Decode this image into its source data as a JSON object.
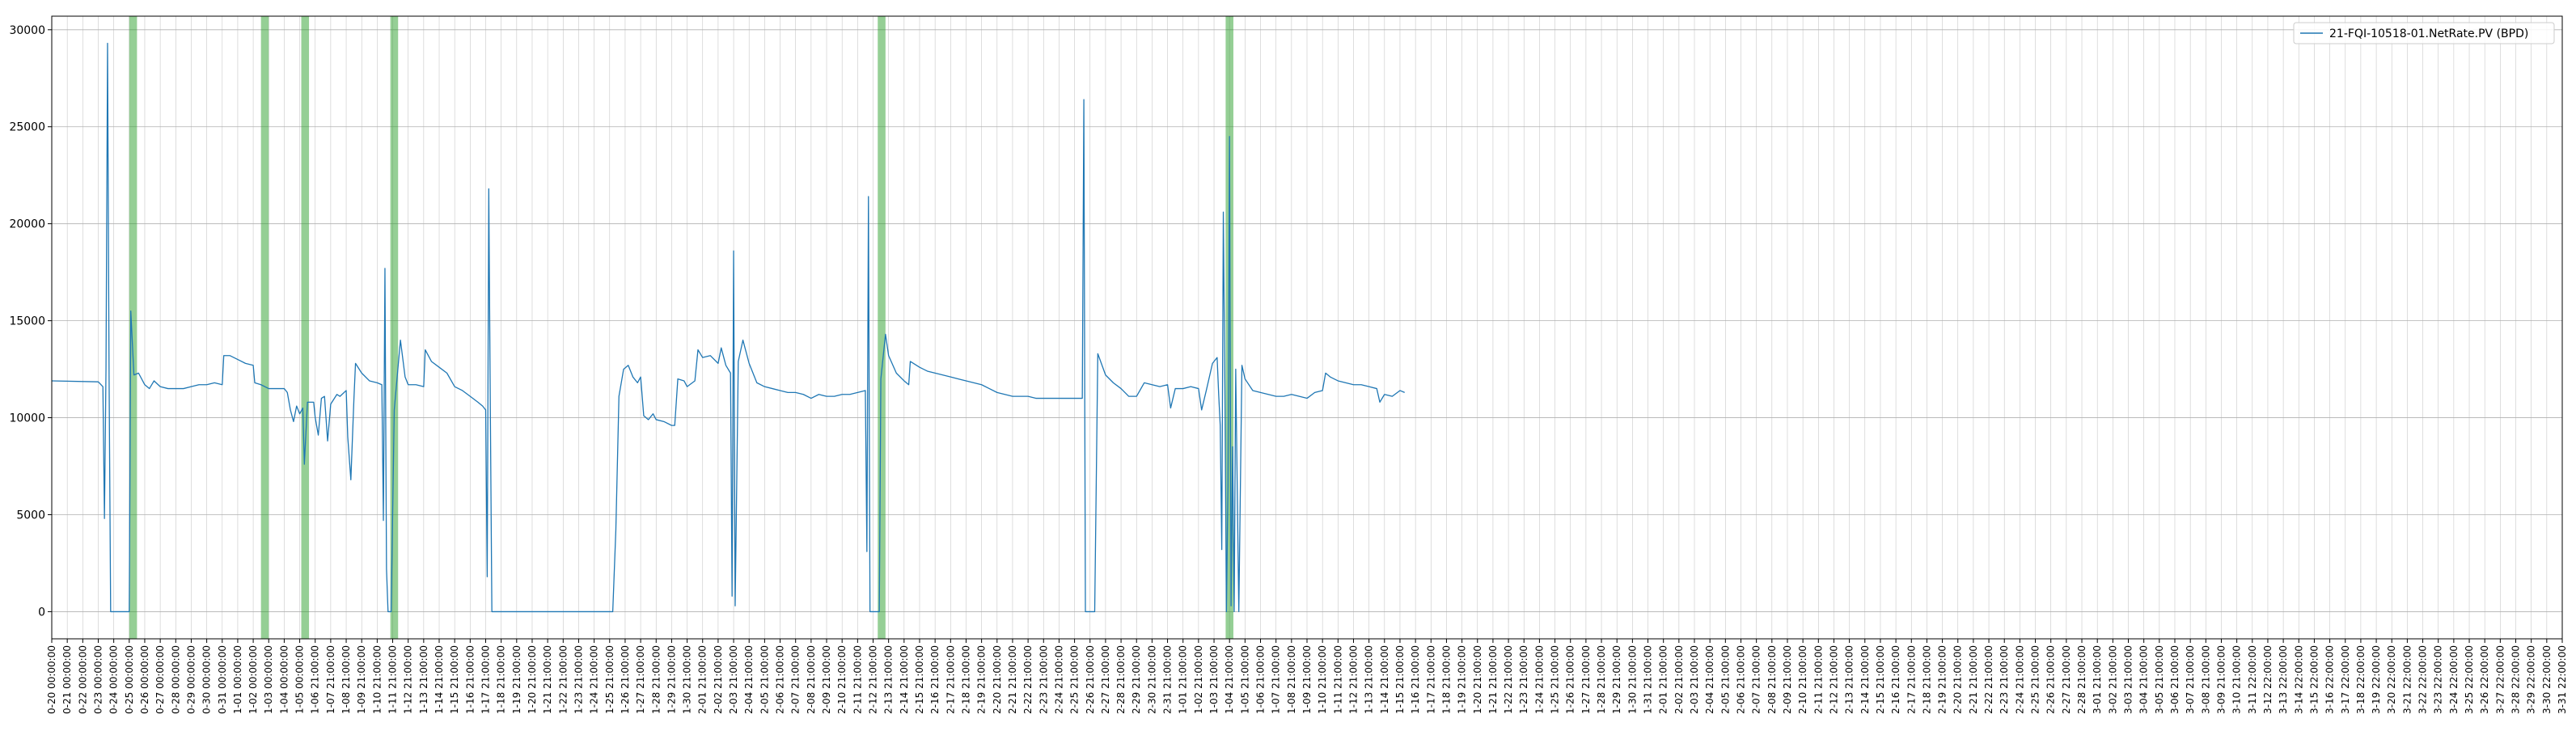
{
  "chart_data": {
    "type": "line",
    "title": "",
    "xlabel": "",
    "ylabel": "",
    "ylim": [
      -1400,
      30700
    ],
    "yticks": [
      0,
      5000,
      10000,
      15000,
      20000,
      25000,
      30000
    ],
    "grid": true,
    "legend_position": "top-right",
    "colors": {
      "series": "#1f77b4",
      "band": "#2ca02c",
      "grid": "#b0b0b0"
    },
    "x_tick_labels": [
      "0-20 00:00:00",
      "0-21 00:00:00",
      "0-22 00:00:00",
      "0-23 00:00:00",
      "0-24 00:00:00",
      "0-25 00:00:00",
      "0-26 00:00:00",
      "0-27 00:00:00",
      "0-28 00:00:00",
      "0-29 00:00:00",
      "0-30 00:00:00",
      "0-31 00:00:00",
      "1-01 00:00:00",
      "1-02 00:00:00",
      "1-03 00:00:00",
      "1-04 00:00:00",
      "1-05 00:00:00",
      "1-06 21:00:00",
      "1-07 21:00:00",
      "1-08 21:00:00",
      "1-09 21:00:00",
      "1-10 21:00:00",
      "1-11 21:00:00",
      "1-12 21:00:00",
      "1-13 21:00:00",
      "1-14 21:00:00",
      "1-15 21:00:00",
      "1-16 21:00:00",
      "1-17 21:00:00",
      "1-18 21:00:00",
      "1-19 21:00:00",
      "1-20 21:00:00",
      "1-21 21:00:00",
      "1-22 21:00:00",
      "1-23 21:00:00",
      "1-24 21:00:00",
      "1-25 21:00:00",
      "1-26 21:00:00",
      "1-27 21:00:00",
      "1-28 21:00:00",
      "1-29 21:00:00",
      "1-30 21:00:00",
      "2-01 21:00:00",
      "2-02 21:00:00",
      "2-03 21:00:00",
      "2-04 21:00:00",
      "2-05 21:00:00",
      "2-06 21:00:00",
      "2-07 21:00:00",
      "2-08 21:00:00",
      "2-09 21:00:00",
      "2-10 21:00:00",
      "2-11 21:00:00",
      "2-12 21:00:00",
      "2-13 21:00:00",
      "2-14 21:00:00",
      "2-15 21:00:00",
      "2-16 21:00:00",
      "2-17 21:00:00",
      "2-18 21:00:00",
      "2-19 21:00:00",
      "2-20 21:00:00",
      "2-21 21:00:00",
      "2-22 21:00:00",
      "2-23 21:00:00",
      "2-24 21:00:00",
      "2-25 21:00:00",
      "2-26 21:00:00",
      "2-27 21:00:00",
      "2-28 21:00:00",
      "2-29 21:00:00",
      "2-30 21:00:00",
      "2-31 21:00:00",
      "1-01 21:00:00",
      "1-02 21:00:00",
      "1-03 21:00:00",
      "1-04 21:00:00",
      "1-05 21:00:00",
      "1-06 21:00:00",
      "1-07 21:00:00",
      "1-08 21:00:00",
      "1-09 21:00:00",
      "1-10 21:00:00",
      "1-11 21:00:00",
      "1-12 21:00:00",
      "1-13 21:00:00",
      "1-14 21:00:00",
      "1-15 21:00:00",
      "1-16 21:00:00",
      "1-17 21:00:00",
      "1-18 21:00:00",
      "1-19 21:00:00",
      "1-20 21:00:00",
      "1-21 21:00:00",
      "1-22 21:00:00",
      "1-23 21:00:00",
      "1-24 21:00:00",
      "1-25 21:00:00",
      "1-26 21:00:00",
      "1-27 21:00:00",
      "1-28 21:00:00",
      "1-29 21:00:00",
      "1-30 21:00:00",
      "1-31 21:00:00",
      "2-01 21:00:00",
      "2-02 21:00:00",
      "2-03 21:00:00",
      "2-04 21:00:00",
      "2-05 21:00:00",
      "2-06 21:00:00",
      "2-07 21:00:00",
      "2-08 21:00:00",
      "2-09 21:00:00",
      "2-10 21:00:00",
      "2-11 21:00:00",
      "2-12 21:00:00",
      "2-13 21:00:00",
      "2-14 21:00:00",
      "2-15 21:00:00",
      "2-16 21:00:00",
      "2-17 21:00:00",
      "2-18 21:00:00",
      "2-19 21:00:00",
      "2-20 21:00:00",
      "2-21 21:00:00",
      "2-22 21:00:00",
      "2-23 21:00:00",
      "2-24 21:00:00",
      "2-25 21:00:00",
      "2-26 21:00:00",
      "2-27 21:00:00",
      "2-28 21:00:00",
      "3-01 21:00:00",
      "3-02 21:00:00",
      "3-03 21:00:00",
      "3-04 21:00:00",
      "3-05 21:00:00",
      "3-06 21:00:00",
      "3-07 21:00:00",
      "3-08 21:00:00",
      "3-09 21:00:00",
      "3-10 21:00:00",
      "3-11 22:00:00",
      "3-12 22:00:00",
      "3-13 22:00:00",
      "3-14 22:00:00",
      "3-15 22:00:00",
      "3-16 22:00:00",
      "3-17 22:00:00",
      "3-18 22:00:00",
      "3-19 22:00:00",
      "3-20 22:00:00",
      "3-21 22:00:00",
      "3-22 22:00:00",
      "3-23 22:00:00",
      "3-24 22:00:00",
      "3-25 22:00:00",
      "3-26 22:00:00",
      "3-27 22:00:00",
      "3-28 22:00:00",
      "3-29 22:00:00",
      "3-30 22:00:00",
      "3-31 22:00:00"
    ],
    "series": [
      {
        "name": "21-FQI-10518-01.NetRate.PV (BPD)",
        "points": [
          [
            0,
            11900
          ],
          [
            3.0,
            11850
          ],
          [
            3.3,
            11600
          ],
          [
            3.4,
            4800
          ],
          [
            3.5,
            12500
          ],
          [
            3.6,
            29300
          ],
          [
            3.7,
            12000
          ],
          [
            3.8,
            0
          ],
          [
            5.0,
            0
          ],
          [
            5.1,
            15500
          ],
          [
            5.3,
            12200
          ],
          [
            5.6,
            12300
          ],
          [
            6.0,
            11700
          ],
          [
            6.3,
            11500
          ],
          [
            6.6,
            11900
          ],
          [
            7.0,
            11600
          ],
          [
            7.5,
            11500
          ],
          [
            8.0,
            11500
          ],
          [
            8.5,
            11500
          ],
          [
            9.0,
            11600
          ],
          [
            9.5,
            11700
          ],
          [
            10.0,
            11700
          ],
          [
            10.5,
            11800
          ],
          [
            11.0,
            11700
          ],
          [
            11.1,
            13200
          ],
          [
            11.5,
            13200
          ],
          [
            12.0,
            13000
          ],
          [
            12.5,
            12800
          ],
          [
            13.0,
            12700
          ],
          [
            13.1,
            11800
          ],
          [
            13.5,
            11700
          ],
          [
            14.0,
            11500
          ],
          [
            14.5,
            11500
          ],
          [
            15.0,
            11500
          ],
          [
            15.2,
            11300
          ],
          [
            15.4,
            10400
          ],
          [
            15.6,
            9800
          ],
          [
            15.8,
            10600
          ],
          [
            16.0,
            10200
          ],
          [
            16.2,
            10500
          ],
          [
            16.3,
            7600
          ],
          [
            16.5,
            10800
          ],
          [
            16.9,
            10800
          ],
          [
            17.0,
            10000
          ],
          [
            17.2,
            9100
          ],
          [
            17.4,
            11000
          ],
          [
            17.6,
            11100
          ],
          [
            17.8,
            8800
          ],
          [
            18.0,
            10700
          ],
          [
            18.4,
            11200
          ],
          [
            18.6,
            11100
          ],
          [
            19.0,
            11400
          ],
          [
            19.1,
            9000
          ],
          [
            19.3,
            6800
          ],
          [
            19.5,
            11000
          ],
          [
            19.6,
            12800
          ],
          [
            20.0,
            12300
          ],
          [
            20.5,
            11900
          ],
          [
            21.0,
            11800
          ],
          [
            21.3,
            11700
          ],
          [
            21.4,
            4700
          ],
          [
            21.5,
            17700
          ],
          [
            21.6,
            2200
          ],
          [
            21.7,
            0
          ],
          [
            21.9,
            0
          ],
          [
            22.1,
            10400
          ],
          [
            22.5,
            14000
          ],
          [
            22.8,
            12100
          ],
          [
            23.0,
            11700
          ],
          [
            23.5,
            11700
          ],
          [
            24.0,
            11600
          ],
          [
            24.1,
            13500
          ],
          [
            24.5,
            12900
          ],
          [
            25.0,
            12600
          ],
          [
            25.5,
            12300
          ],
          [
            26.0,
            11600
          ],
          [
            26.5,
            11400
          ],
          [
            27.0,
            11100
          ],
          [
            27.5,
            10800
          ],
          [
            27.8,
            10600
          ],
          [
            28.0,
            10400
          ],
          [
            28.1,
            1800
          ],
          [
            28.2,
            21800
          ],
          [
            28.3,
            10500
          ],
          [
            28.4,
            0
          ],
          [
            30,
            0
          ],
          [
            32,
            0
          ],
          [
            34,
            0
          ],
          [
            36,
            0
          ],
          [
            36.2,
            0
          ],
          [
            36.4,
            4200
          ],
          [
            36.6,
            11100
          ],
          [
            36.9,
            12500
          ],
          [
            37.2,
            12700
          ],
          [
            37.5,
            12100
          ],
          [
            37.8,
            11800
          ],
          [
            38.0,
            12100
          ],
          [
            38.2,
            10100
          ],
          [
            38.5,
            9900
          ],
          [
            38.8,
            10200
          ],
          [
            39.0,
            9900
          ],
          [
            39.5,
            9800
          ],
          [
            40.0,
            9600
          ],
          [
            40.2,
            9600
          ],
          [
            40.4,
            12000
          ],
          [
            40.8,
            11900
          ],
          [
            41.0,
            11600
          ],
          [
            41.5,
            11900
          ],
          [
            41.7,
            13500
          ],
          [
            42.0,
            13100
          ],
          [
            42.5,
            13200
          ],
          [
            43.0,
            12800
          ],
          [
            43.2,
            13600
          ],
          [
            43.5,
            12700
          ],
          [
            43.8,
            12300
          ],
          [
            43.9,
            800
          ],
          [
            44.0,
            18600
          ],
          [
            44.1,
            300
          ],
          [
            44.3,
            12900
          ],
          [
            44.6,
            14000
          ],
          [
            45.0,
            12800
          ],
          [
            45.5,
            11800
          ],
          [
            46.0,
            11600
          ],
          [
            46.5,
            11500
          ],
          [
            47.0,
            11400
          ],
          [
            47.5,
            11300
          ],
          [
            48.0,
            11300
          ],
          [
            48.5,
            11200
          ],
          [
            49.0,
            11000
          ],
          [
            49.5,
            11200
          ],
          [
            50.0,
            11100
          ],
          [
            50.5,
            11100
          ],
          [
            51.0,
            11200
          ],
          [
            51.5,
            11200
          ],
          [
            52.0,
            11300
          ],
          [
            52.5,
            11400
          ],
          [
            52.6,
            3100
          ],
          [
            52.7,
            21400
          ],
          [
            52.8,
            0
          ],
          [
            53.4,
            0
          ],
          [
            53.5,
            12000
          ],
          [
            53.8,
            14300
          ],
          [
            54.0,
            13200
          ],
          [
            54.5,
            12300
          ],
          [
            55.0,
            11900
          ],
          [
            55.3,
            11700
          ],
          [
            55.4,
            12900
          ],
          [
            56.0,
            12600
          ],
          [
            56.5,
            12400
          ],
          [
            57.0,
            12300
          ],
          [
            57.5,
            12200
          ],
          [
            58.0,
            12100
          ],
          [
            58.5,
            12000
          ],
          [
            59.0,
            11900
          ],
          [
            59.5,
            11800
          ],
          [
            60.0,
            11700
          ],
          [
            60.5,
            11500
          ],
          [
            61.0,
            11300
          ],
          [
            61.5,
            11200
          ],
          [
            62.0,
            11100
          ],
          [
            62.5,
            11100
          ],
          [
            63.0,
            11100
          ],
          [
            63.5,
            11000
          ],
          [
            64.0,
            11000
          ],
          [
            64.5,
            11000
          ],
          [
            65.0,
            11000
          ],
          [
            65.5,
            11000
          ],
          [
            66.0,
            11000
          ],
          [
            66.5,
            11000
          ],
          [
            66.6,
            26400
          ],
          [
            66.7,
            0
          ],
          [
            67.3,
            0
          ],
          [
            67.5,
            13300
          ],
          [
            68.0,
            12200
          ],
          [
            68.5,
            11800
          ],
          [
            69.0,
            11500
          ],
          [
            69.5,
            11100
          ],
          [
            70.0,
            11100
          ],
          [
            70.5,
            11800
          ],
          [
            71.0,
            11700
          ],
          [
            71.5,
            11600
          ],
          [
            72.0,
            11700
          ],
          [
            72.2,
            10500
          ],
          [
            72.5,
            11500
          ],
          [
            73.0,
            11500
          ],
          [
            73.5,
            11600
          ],
          [
            74.0,
            11500
          ],
          [
            74.2,
            10400
          ],
          [
            74.5,
            11400
          ],
          [
            74.9,
            12800
          ],
          [
            75.2,
            13100
          ],
          [
            75.3,
            11200
          ],
          [
            75.4,
            9600
          ],
          [
            75.5,
            3200
          ],
          [
            75.6,
            20600
          ],
          [
            75.7,
            11600
          ],
          [
            75.8,
            0
          ],
          [
            75.9,
            6500
          ],
          [
            76.0,
            24500
          ],
          [
            76.1,
            300
          ],
          [
            76.2,
            8500
          ],
          [
            76.3,
            0
          ],
          [
            76.4,
            12500
          ],
          [
            76.6,
            0
          ],
          [
            76.8,
            12700
          ],
          [
            77.0,
            12000
          ],
          [
            77.5,
            11400
          ],
          [
            78.0,
            11300
          ],
          [
            78.5,
            11200
          ],
          [
            79.0,
            11100
          ],
          [
            79.5,
            11100
          ],
          [
            80.0,
            11200
          ],
          [
            80.5,
            11100
          ],
          [
            81.0,
            11000
          ],
          [
            81.5,
            11300
          ],
          [
            82.0,
            11400
          ],
          [
            82.2,
            12300
          ],
          [
            82.5,
            12100
          ],
          [
            83.0,
            11900
          ],
          [
            83.5,
            11800
          ],
          [
            84.0,
            11700
          ],
          [
            84.5,
            11700
          ],
          [
            85.0,
            11600
          ],
          [
            85.5,
            11500
          ],
          [
            85.7,
            10800
          ],
          [
            86.0,
            11200
          ],
          [
            86.5,
            11100
          ],
          [
            87.0,
            11400
          ],
          [
            87.3,
            11300
          ]
        ]
      }
    ],
    "shaded_x_ranges": [
      [
        5.0,
        5.5
      ],
      [
        13.5,
        14.0
      ],
      [
        16.1,
        16.6
      ],
      [
        21.85,
        22.35
      ],
      [
        53.3,
        53.8
      ],
      [
        75.75,
        76.25
      ]
    ],
    "legend": {
      "label": "21-FQI-10518-01.NetRate.PV (BPD)"
    }
  }
}
